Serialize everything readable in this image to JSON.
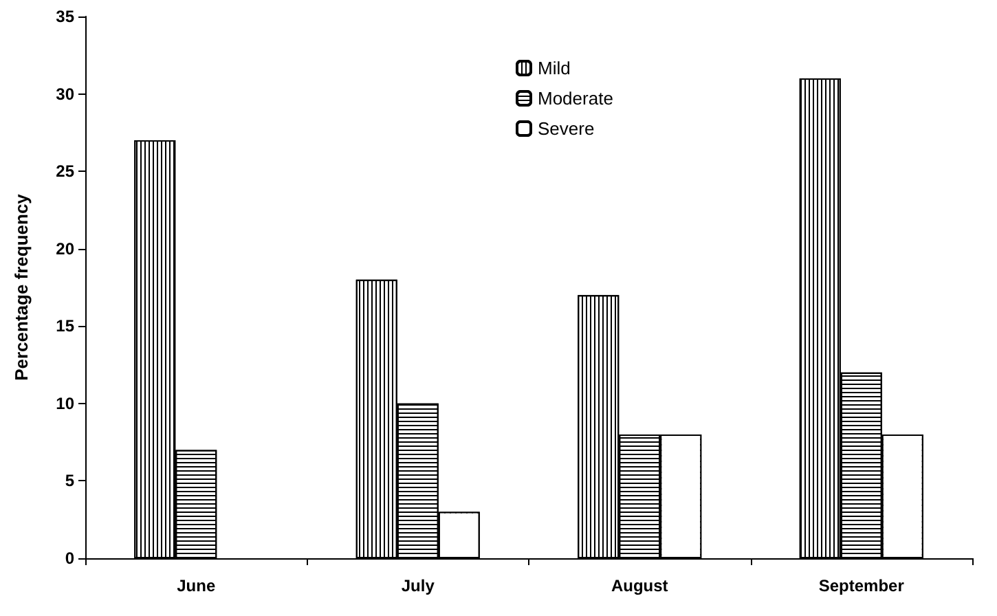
{
  "chart_data": {
    "type": "bar",
    "ylabel": "Percentage frequency",
    "categories": [
      "June",
      "July",
      "August",
      "September"
    ],
    "series": [
      {
        "name": "Mild",
        "color": "#000000",
        "values": [
          27,
          18,
          17,
          31
        ]
      },
      {
        "name": "Moderate",
        "color": "#000000",
        "values": [
          7,
          10,
          8,
          12
        ]
      },
      {
        "name": "Severe",
        "color": "#000000",
        "values": [
          null,
          3,
          8,
          8
        ]
      }
    ],
    "ylim": [
      0,
      35
    ],
    "yticks": [
      0,
      5,
      10,
      15,
      20,
      25,
      30,
      35
    ],
    "grid": false,
    "legend": "top"
  }
}
